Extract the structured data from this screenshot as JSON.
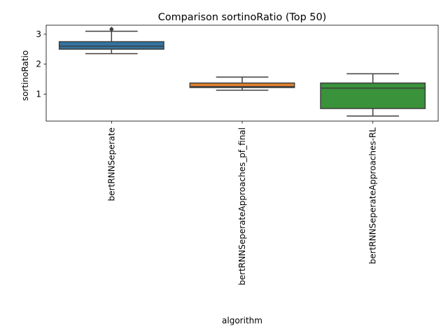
{
  "chart_data": {
    "type": "box",
    "title": "Comparison sortinoRatio (Top 50)",
    "xlabel": "algorithm",
    "ylabel": "sortinoRatio",
    "ylim": [
      0.1,
      3.3
    ],
    "yticks": [
      1,
      2,
      3
    ],
    "categories": [
      "bertRNNSeperate",
      "bertRNNSeperateApproaches_pf_final",
      "bertRNNSeperateApproaches-RL"
    ],
    "boxes": [
      {
        "category": "bertRNNSeperate",
        "color": "#3274a1",
        "whisker_low": 2.35,
        "q1": 2.5,
        "median": 2.6,
        "q3": 2.75,
        "whisker_high": 3.1,
        "outliers": [
          3.15,
          3.18
        ]
      },
      {
        "category": "bertRNNSeperateApproaches_pf_final",
        "color": "#e1812c",
        "whisker_low": 1.13,
        "q1": 1.22,
        "median": 1.25,
        "q3": 1.37,
        "whisker_high": 1.57,
        "outliers": []
      },
      {
        "category": "bertRNNSeperateApproaches-RL",
        "color": "#3a923a",
        "whisker_low": 0.27,
        "q1": 0.52,
        "median": 1.2,
        "q3": 1.37,
        "whisker_high": 1.68,
        "outliers": []
      }
    ]
  }
}
